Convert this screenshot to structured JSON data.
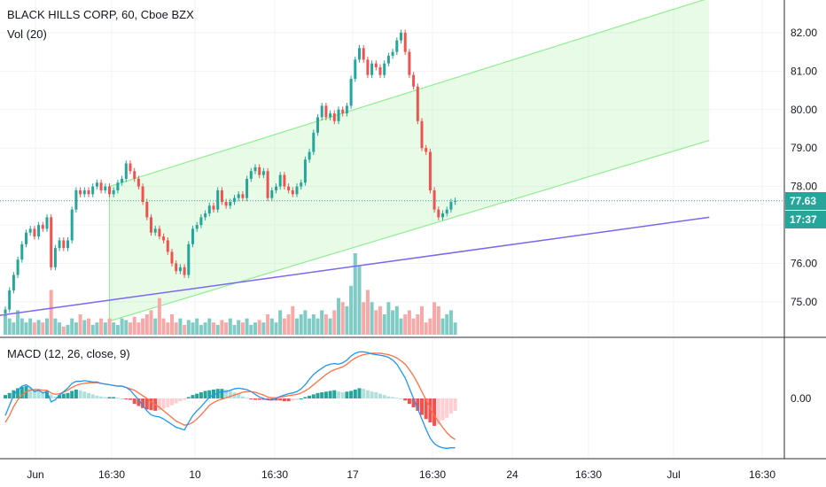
{
  "legend": {
    "title": "BLACK HILLS CORP, 60, Cboe BZX",
    "volume": "Vol (20)",
    "macd": "MACD (12, 26, close, 9)"
  },
  "price_tags": {
    "last_price": "77.63",
    "countdown": "17:37"
  },
  "colors": {
    "up": "#26a69a",
    "down": "#ef5350",
    "up_volume": "#80cbc4",
    "down_volume": "#f7a9a7",
    "channel": "#90ee90",
    "trendline": "#7b68ee",
    "macd_line": "#2196f3",
    "signal_line": "#ff7043",
    "tag": "#26a69a"
  },
  "chart_data": {
    "type": "candlestick",
    "title": "BLACK HILLS CORP, 60, Cboe BZX",
    "price_axis": {
      "ticks": [
        "82.00",
        "81.00",
        "80.00",
        "79.00",
        "78.00",
        "77.00",
        "76.00",
        "75.00"
      ],
      "ylim": [
        74.1,
        82.85
      ]
    },
    "time_axis": {
      "ticks": [
        "Jun",
        "16:30",
        "10",
        "16:30",
        "17",
        "16:30",
        "24",
        "16:30",
        "Jul",
        "16:30"
      ]
    },
    "closes": [
      74.8,
      75.3,
      75.7,
      76.1,
      76.5,
      76.8,
      76.9,
      76.7,
      77.0,
      76.9,
      77.2,
      75.9,
      76.4,
      76.6,
      76.4,
      76.6,
      77.4,
      77.9,
      77.8,
      77.9,
      77.8,
      78.0,
      78.1,
      77.9,
      78.0,
      77.8,
      77.9,
      78.1,
      78.2,
      78.6,
      78.4,
      78.2,
      78.0,
      77.6,
      77.2,
      76.8,
      76.9,
      76.7,
      76.6,
      76.3,
      76.0,
      75.8,
      75.9,
      75.7,
      76.5,
      76.9,
      77.0,
      77.2,
      77.3,
      77.5,
      77.4,
      77.9,
      77.6,
      77.5,
      77.6,
      77.7,
      77.8,
      77.7,
      78.2,
      78.4,
      78.5,
      78.3,
      78.4,
      77.7,
      77.9,
      78.0,
      78.3,
      78.0,
      77.9,
      77.8,
      78.0,
      78.1,
      78.7,
      78.9,
      79.4,
      79.8,
      80.1,
      79.8,
      79.9,
      79.7,
      80.0,
      79.9,
      80.1,
      80.8,
      81.3,
      81.6,
      81.3,
      80.9,
      81.2,
      81.1,
      80.9,
      81.2,
      81.4,
      81.5,
      81.8,
      82.0,
      81.5,
      80.9,
      80.6,
      79.7,
      79.0,
      78.9,
      77.9,
      77.4,
      77.2,
      77.3,
      77.4,
      77.6,
      77.63
    ],
    "volume_ylim": [
      0,
      1
    ],
    "volumes": [
      0.25,
      0.2,
      0.15,
      0.3,
      0.2,
      0.15,
      0.2,
      0.15,
      0.18,
      0.15,
      0.2,
      0.55,
      0.2,
      0.15,
      0.1,
      0.12,
      0.2,
      0.15,
      0.25,
      0.18,
      0.2,
      0.12,
      0.15,
      0.2,
      0.15,
      0.2,
      0.15,
      0.12,
      0.2,
      0.18,
      0.15,
      0.22,
      0.15,
      0.2,
      0.25,
      0.3,
      0.2,
      0.45,
      0.2,
      0.15,
      0.25,
      0.15,
      0.2,
      0.12,
      0.18,
      0.15,
      0.2,
      0.12,
      0.15,
      0.2,
      0.15,
      0.12,
      0.18,
      0.15,
      0.2,
      0.12,
      0.18,
      0.15,
      0.2,
      0.12,
      0.15,
      0.18,
      0.15,
      0.25,
      0.2,
      0.15,
      0.3,
      0.2,
      0.25,
      0.35,
      0.2,
      0.25,
      0.3,
      0.2,
      0.25,
      0.2,
      0.3,
      0.25,
      0.2,
      0.3,
      0.45,
      0.4,
      0.35,
      0.6,
      1.0,
      0.85,
      0.4,
      0.55,
      0.4,
      0.3,
      0.35,
      0.25,
      0.4,
      0.3,
      0.35,
      0.2,
      0.25,
      0.3,
      0.2,
      0.25,
      0.35,
      0.15,
      0.2,
      0.4,
      0.35,
      0.2,
      0.25,
      0.3,
      0.15
    ],
    "macd": {
      "zero_label": "0.00",
      "ylim": [
        -0.75,
        0.75
      ],
      "histogram": [
        0.05,
        0.08,
        0.12,
        0.15,
        0.17,
        0.18,
        0.16,
        0.13,
        0.11,
        0.1,
        0.11,
        0.06,
        0.03,
        0.05,
        0.07,
        0.08,
        0.11,
        0.13,
        0.12,
        0.1,
        0.08,
        0.06,
        0.04,
        0.03,
        0.02,
        0.02,
        0.02,
        0.01,
        0.0,
        -0.01,
        -0.02,
        -0.08,
        -0.11,
        -0.14,
        -0.16,
        -0.17,
        -0.18,
        -0.17,
        -0.15,
        -0.13,
        -0.1,
        -0.07,
        -0.04,
        -0.02,
        0.02,
        0.05,
        0.07,
        0.09,
        0.11,
        0.12,
        0.13,
        0.14,
        0.14,
        0.13,
        0.11,
        0.09,
        0.06,
        0.03,
        0.01,
        -0.01,
        -0.02,
        -0.02,
        -0.02,
        -0.02,
        -0.03,
        -0.03,
        -0.03,
        -0.04,
        -0.04,
        -0.03,
        -0.02,
        0.0,
        0.02,
        0.04,
        0.06,
        0.08,
        0.09,
        0.1,
        0.11,
        0.12,
        0.1,
        0.09,
        0.1,
        0.11,
        0.13,
        0.15,
        0.14,
        0.12,
        0.1,
        0.09,
        0.07,
        0.05,
        0.03,
        0.02,
        0.01,
        0.0,
        -0.03,
        -0.08,
        -0.13,
        -0.18,
        -0.24,
        -0.3,
        -0.35,
        -0.4,
        -0.38,
        -0.32,
        -0.28,
        -0.22,
        -0.18
      ],
      "macd_line": [
        -0.25,
        -0.1,
        0.05,
        0.12,
        0.18,
        0.2,
        0.16,
        0.1,
        0.12,
        0.08,
        0.1,
        -0.05,
        -0.02,
        0.05,
        0.1,
        0.15,
        0.22,
        0.25,
        0.25,
        0.26,
        0.25,
        0.24,
        0.24,
        0.22,
        0.21,
        0.2,
        0.19,
        0.18,
        0.18,
        0.16,
        0.12,
        0.05,
        -0.02,
        -0.1,
        -0.18,
        -0.24,
        -0.26,
        -0.27,
        -0.3,
        -0.34,
        -0.38,
        -0.42,
        -0.44,
        -0.46,
        -0.35,
        -0.25,
        -0.18,
        -0.12,
        -0.05,
        0.02,
        0.05,
        0.08,
        0.1,
        0.1,
        0.12,
        0.14,
        0.15,
        0.14,
        0.13,
        0.1,
        0.06,
        0.02,
        0.0,
        -0.02,
        -0.02,
        0.0,
        0.03,
        0.05,
        0.07,
        0.08,
        0.1,
        0.14,
        0.2,
        0.28,
        0.35,
        0.4,
        0.44,
        0.48,
        0.5,
        0.51,
        0.5,
        0.52,
        0.56,
        0.62,
        0.66,
        0.68,
        0.68,
        0.67,
        0.65,
        0.64,
        0.63,
        0.62,
        0.6,
        0.56,
        0.5,
        0.4,
        0.3,
        0.15,
        0.0,
        -0.15,
        -0.3,
        -0.45,
        -0.58,
        -0.66,
        -0.7,
        -0.72,
        -0.73,
        -0.72,
        -0.72
      ],
      "signal_line": [
        -0.35,
        -0.25,
        -0.12,
        -0.02,
        0.05,
        0.1,
        0.12,
        0.13,
        0.13,
        0.12,
        0.12,
        0.08,
        0.06,
        0.07,
        0.09,
        0.12,
        0.16,
        0.19,
        0.21,
        0.22,
        0.23,
        0.23,
        0.23,
        0.22,
        0.21,
        0.2,
        0.19,
        0.18,
        0.18,
        0.16,
        0.14,
        0.12,
        0.08,
        0.04,
        0.0,
        -0.05,
        -0.09,
        -0.13,
        -0.18,
        -0.23,
        -0.28,
        -0.33,
        -0.36,
        -0.39,
        -0.38,
        -0.35,
        -0.3,
        -0.24,
        -0.17,
        -0.1,
        -0.06,
        -0.03,
        -0.01,
        0.01,
        0.03,
        0.05,
        0.07,
        0.09,
        0.1,
        0.1,
        0.09,
        0.07,
        0.05,
        0.02,
        0.01,
        0.01,
        0.02,
        0.03,
        0.04,
        0.05,
        0.06,
        0.08,
        0.11,
        0.15,
        0.2,
        0.25,
        0.3,
        0.35,
        0.39,
        0.42,
        0.44,
        0.46,
        0.5,
        0.55,
        0.59,
        0.62,
        0.64,
        0.65,
        0.66,
        0.66,
        0.66,
        0.65,
        0.64,
        0.62,
        0.59,
        0.55,
        0.5,
        0.42,
        0.33,
        0.22,
        0.1,
        -0.02,
        -0.14,
        -0.25,
        -0.34,
        -0.42,
        -0.5,
        -0.56,
        -0.6
      ]
    },
    "drawings": [
      {
        "type": "parallel_channel",
        "upper": [
          [
            25,
            78.0
          ],
          [
            169,
            82.9
          ]
        ],
        "lower": [
          [
            25,
            74.5
          ],
          [
            169,
            79.2
          ]
        ]
      },
      {
        "type": "trend_line",
        "points": [
          [
            0,
            74.65
          ],
          [
            169,
            77.2
          ]
        ]
      }
    ],
    "last_price_line": 77.63
  }
}
